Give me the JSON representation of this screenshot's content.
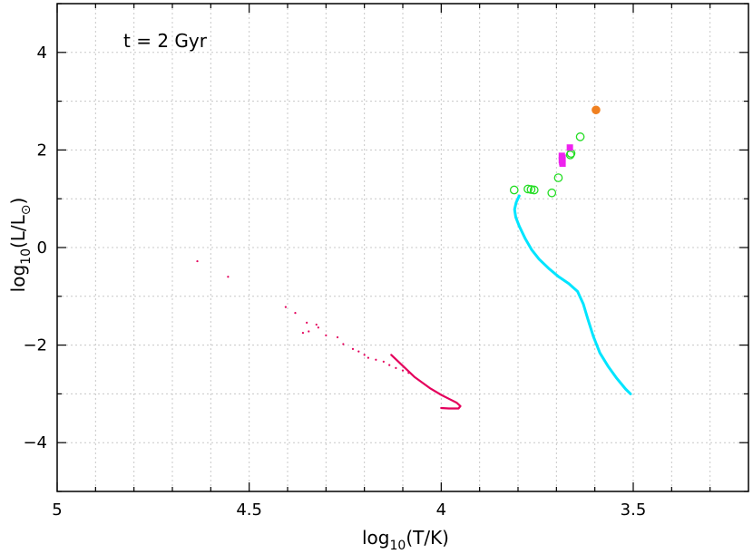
{
  "chart_data": {
    "type": "scatter",
    "title": "",
    "annotation": "t = 2 Gyr",
    "xlabel": "log10(T/K)",
    "ylabel": "log10(L/L⊙)",
    "x_reversed": true,
    "xlim": [
      5.0,
      3.2
    ],
    "ylim": [
      -5.0,
      5.0
    ],
    "x_major_ticks": [
      5,
      4.5,
      4,
      3.5
    ],
    "x_tick_labels": [
      "5",
      "4.5",
      "4",
      "3.5"
    ],
    "x_minor_ticks": [
      4.9,
      4.8,
      4.7,
      4.6,
      4.4,
      4.3,
      4.2,
      4.1,
      3.9,
      3.8,
      3.7,
      3.6,
      3.4,
      3.3
    ],
    "y_major_ticks": [
      4,
      2,
      0,
      -2,
      -4
    ],
    "y_tick_labels": [
      "4",
      "2",
      "0",
      "−2",
      "−4"
    ],
    "y_minor_ticks": [
      -5,
      -3,
      -1,
      1,
      3,
      5
    ],
    "grid": true,
    "series": [
      {
        "kind": "curve",
        "color": "#00e5ff",
        "points": [
          [
            3.797,
            1.06
          ],
          [
            3.805,
            0.92
          ],
          [
            3.809,
            0.78
          ],
          [
            3.806,
            0.62
          ],
          [
            3.797,
            0.44
          ],
          [
            3.781,
            0.18
          ],
          [
            3.764,
            -0.05
          ],
          [
            3.745,
            -0.24
          ],
          [
            3.72,
            -0.43
          ],
          [
            3.694,
            -0.6
          ],
          [
            3.668,
            -0.74
          ],
          [
            3.645,
            -0.9
          ],
          [
            3.63,
            -1.16
          ],
          [
            3.618,
            -1.47
          ],
          [
            3.604,
            -1.82
          ],
          [
            3.587,
            -2.16
          ],
          [
            3.566,
            -2.43
          ],
          [
            3.543,
            -2.68
          ],
          [
            3.52,
            -2.9
          ],
          [
            3.507,
            -3.0
          ]
        ]
      },
      {
        "kind": "curve",
        "color": "#e4005c",
        "points": [
          [
            4.13,
            -2.2
          ],
          [
            4.07,
            -2.65
          ],
          [
            4.03,
            -2.88
          ],
          [
            4.0,
            -3.02
          ],
          [
            3.98,
            -3.1
          ],
          [
            3.96,
            -3.18
          ],
          [
            3.95,
            -3.25
          ],
          [
            3.955,
            -3.3
          ],
          [
            3.98,
            -3.3
          ],
          [
            4.0,
            -3.29
          ]
        ]
      },
      {
        "kind": "dots",
        "color": "#e4005c",
        "points": [
          [
            4.635,
            -0.28
          ],
          [
            4.555,
            -0.6
          ],
          [
            4.405,
            -1.22
          ],
          [
            4.38,
            -1.34
          ],
          [
            4.35,
            -1.54
          ],
          [
            4.325,
            -1.58
          ],
          [
            4.32,
            -1.64
          ],
          [
            4.345,
            -1.72
          ],
          [
            4.36,
            -1.75
          ],
          [
            4.3,
            -1.8
          ],
          [
            4.27,
            -1.84
          ],
          [
            4.255,
            -1.98
          ],
          [
            4.23,
            -2.08
          ],
          [
            4.215,
            -2.13
          ],
          [
            4.2,
            -2.2
          ],
          [
            4.19,
            -2.26
          ],
          [
            4.17,
            -2.3
          ],
          [
            4.15,
            -2.34
          ],
          [
            4.135,
            -2.41
          ],
          [
            4.118,
            -2.47
          ],
          [
            4.1,
            -2.52
          ],
          [
            4.085,
            -2.57
          ]
        ]
      },
      {
        "kind": "open-circles",
        "color": "#22dd22",
        "points": [
          [
            3.81,
            1.18
          ],
          [
            3.774,
            1.2
          ],
          [
            3.766,
            1.19
          ],
          [
            3.758,
            1.18
          ],
          [
            3.712,
            1.12
          ],
          [
            3.695,
            1.43
          ],
          [
            3.664,
            1.9
          ],
          [
            3.662,
            1.93
          ],
          [
            3.638,
            2.27
          ]
        ]
      },
      {
        "kind": "squares",
        "color": "#ee22ee",
        "points": [
          [
            3.665,
            2.05
          ],
          [
            3.686,
            1.88
          ],
          [
            3.684,
            1.84
          ],
          [
            3.686,
            1.79
          ],
          [
            3.685,
            1.75
          ],
          [
            3.684,
            1.72
          ]
        ]
      },
      {
        "kind": "filled-circles",
        "color": "#f08020",
        "points": [
          [
            3.597,
            2.82
          ]
        ]
      }
    ]
  }
}
